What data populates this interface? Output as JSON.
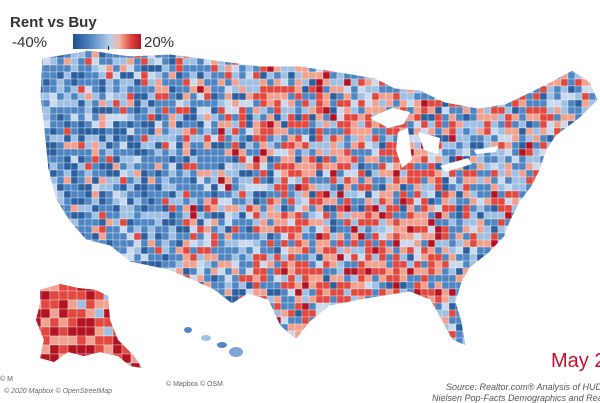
{
  "legend": {
    "title": "Rent vs Buy",
    "min_label": "-40%",
    "max_label": "20%",
    "gradient_colors": [
      "#1f4e8c",
      "#4f86c2",
      "#b9d1ea",
      "#f1b6a6",
      "#e1483f",
      "#b31424"
    ]
  },
  "map": {
    "palette": {
      "strong_blue": "#2c5f9e",
      "blue": "#4f86c2",
      "light_blue": "#9fbfe3",
      "pale": "#c9d9ee",
      "salmon": "#f0a18f",
      "red": "#e1483f",
      "dark_red": "#b31424"
    },
    "land_color": "#7ea6d4",
    "outline_color": "#ffffff"
  },
  "attribution": {
    "bottom_left_1": "© M",
    "bottom_left_2": "© 2020 Mapbox © OpenStreetMap",
    "bottom_mid": "© Mapbox © OSM"
  },
  "date_label": "May 2",
  "source": {
    "line1": "Source: Realtor.com® Analysis of HUD M",
    "line2": "Nielsen Pop-Facts Demographics and Realt"
  }
}
